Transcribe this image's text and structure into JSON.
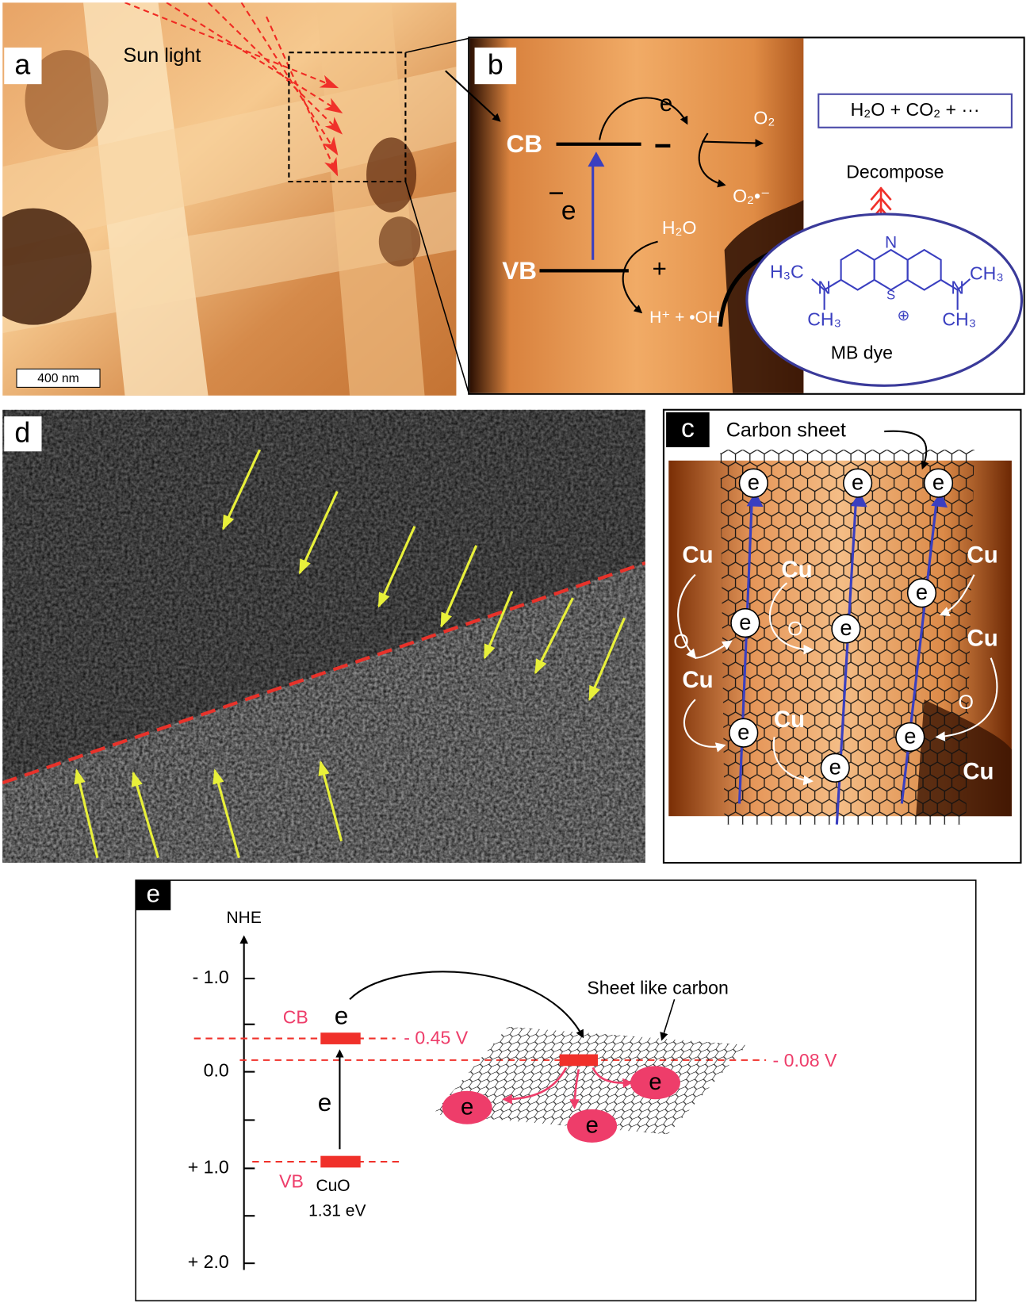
{
  "panel_a": {
    "label": "a",
    "sun_light": "Sun light",
    "scale_bar": "400 nm"
  },
  "panel_b": {
    "label": "b",
    "cb": "CB",
    "vb": "VB",
    "electron_excited": "e",
    "electron_transfer": "e",
    "hole": "+",
    "o2": "O₂",
    "superoxide": "O₂•⁻",
    "water": "H₂O",
    "products_radical": "H⁺ + •OH",
    "end_products": "H₂O + CO₂ + ···",
    "decompose": "Decompose",
    "dye_name": "MB dye",
    "molecule": {
      "n_top": "N",
      "s": "S",
      "charge": "⊕",
      "left_methyl_top": "H₃C",
      "left_n": "N",
      "left_methyl_bottom": "CH₃",
      "right_n": "N",
      "right_methyl_top": "CH₃",
      "right_methyl_bottom": "CH₃"
    }
  },
  "panel_d": {
    "label": "d"
  },
  "panel_c": {
    "label": "c",
    "carbon_sheet": "Carbon sheet",
    "copper": [
      "Cu",
      "Cu",
      "Cu",
      "Cu",
      "Cu",
      "Cu",
      "Cu"
    ],
    "oxygen": [
      "O",
      "O",
      "O"
    ],
    "electrons": [
      "e",
      "e",
      "e",
      "e",
      "e",
      "e",
      "e",
      "e",
      "e"
    ]
  },
  "panel_e": {
    "label": "e",
    "axis_label": "NHE",
    "axis_ticks": [
      "- 1.0",
      "0.0",
      "+ 1.0",
      "+ 2.0"
    ],
    "cb": "CB",
    "vb": "VB",
    "electron_cb": "e",
    "electron_gap": "e",
    "cb_potential": "- 0.45 V",
    "sheet_potential": "- 0.08 V",
    "material": "CuO",
    "band_gap": "1.31 eV",
    "sheet_label": "Sheet like carbon",
    "sheet_electrons": [
      "e",
      "e",
      "e"
    ]
  }
}
